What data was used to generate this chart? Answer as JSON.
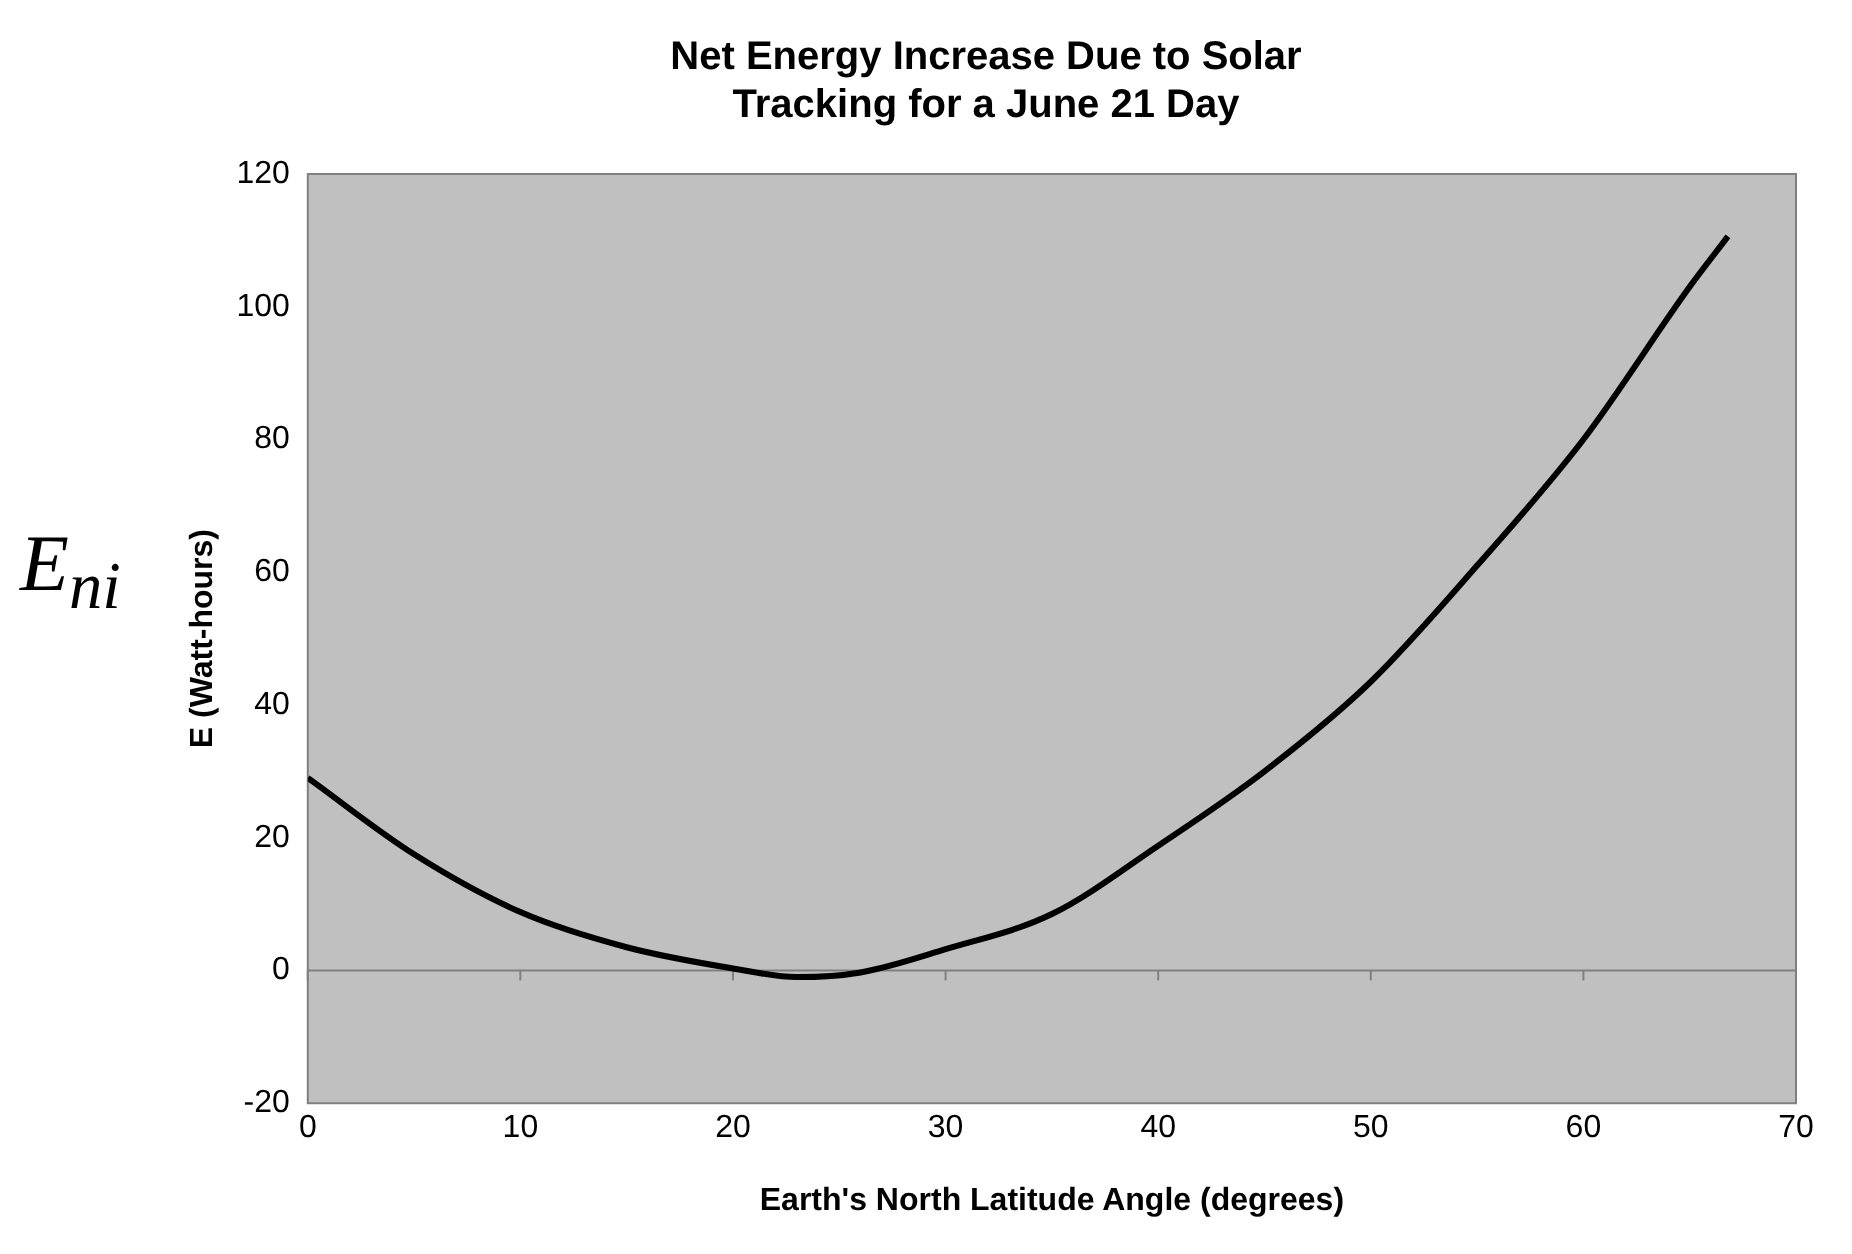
{
  "chart_data": {
    "type": "line",
    "title": [
      "Net Energy Increase Due to Solar",
      "Tracking for a June 21 Day"
    ],
    "xlabel": "Earth's North Latitude Angle (degrees)",
    "ylabel": "E (Watt-hours)",
    "annotations": [
      "E$_{ni}$"
    ],
    "x": [
      0,
      5,
      10,
      15,
      20,
      23,
      26,
      30,
      35,
      40,
      45,
      50,
      55,
      60,
      65,
      66.8
    ],
    "series": [
      {
        "color": "#000000",
        "values": [
          29,
          17.5,
          8.8,
          3.5,
          0.3,
          -1,
          -0.3,
          3.2,
          8.5,
          18.8,
          30,
          43.5,
          61,
          80,
          103,
          110.6
        ]
      }
    ],
    "xlim": [
      0,
      70
    ],
    "xticks": [
      0,
      10,
      20,
      30,
      40,
      50,
      60,
      70
    ],
    "ylim": [
      -20,
      120
    ],
    "yticks": [
      -20,
      0,
      20,
      40,
      60,
      80,
      100,
      120
    ],
    "ref_lines": [
      {
        "axis": "y",
        "value": 0,
        "color": "#808080"
      }
    ],
    "grid": false,
    "legend": false,
    "marker": "none",
    "line_style": "solid"
  }
}
